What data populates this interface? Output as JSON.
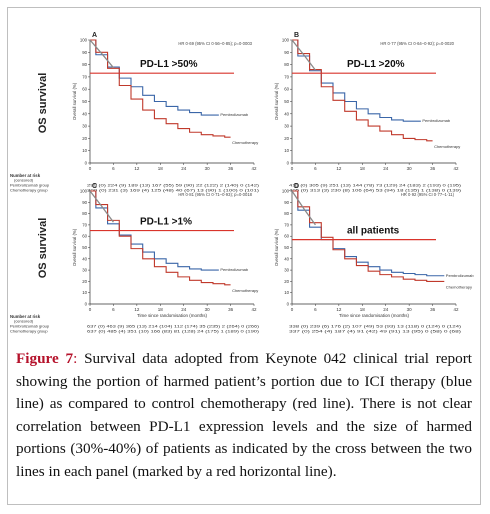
{
  "figure": {
    "caption": {
      "label": "Figure 7",
      "separator": ":",
      "text": " Survival data adopted from Keynote 042 clinical trial report showing the portion of harmed patient’s portion due to ICI therapy (blue line) as compared to control chemotherapy (red line). There is not clear correlation between PD-L1 expression levels and the size of harmed portions (30%-40%) of patients as indicated by the cross between the two lines in each panel (marked by a red horizontal line)."
    },
    "row_labels": [
      "OS survival",
      "OS survival"
    ],
    "risk_labels": {
      "header": "Number at risk\n(censored)",
      "pembro": "Pembrolizumab group",
      "chemo": "Chemotherapy group"
    },
    "colors": {
      "pembrolizumab": "#3a66a8",
      "chemotherapy": "#c0392b",
      "threshold": "#d9342b",
      "km_early": "#8a8a8a"
    }
  },
  "chart_data": [
    {
      "type": "line",
      "panel": "A",
      "title": "PD-L1 >50%",
      "hr_text": "HR 0·69 (95% CI 0·56–0·85); p=0·0003",
      "xlabel": "Time since randomisation (months)",
      "ylabel": "Overall survival (%)",
      "xlim": [
        0,
        42
      ],
      "ylim": [
        0,
        100
      ],
      "xticks": [
        0,
        6,
        12,
        18,
        24,
        30,
        36,
        42
      ],
      "yticks": [
        0,
        10,
        20,
        30,
        40,
        50,
        60,
        70,
        80,
        90,
        100
      ],
      "threshold_y": 73,
      "series": [
        {
          "name": "Pembrolizumab",
          "x": [
            0,
            3,
            6,
            9,
            12,
            15,
            18,
            21,
            24,
            27,
            30,
            33
          ],
          "values": [
            100,
            88,
            78,
            69,
            62,
            55,
            50,
            46,
            43,
            41,
            39,
            39
          ]
        },
        {
          "name": "Chemotherapy",
          "x": [
            0,
            3,
            6,
            9,
            12,
            15,
            18,
            21,
            24,
            27,
            30,
            33,
            36
          ],
          "values": [
            100,
            90,
            77,
            63,
            52,
            43,
            36,
            32,
            28,
            25,
            23,
            22,
            21
          ]
        }
      ],
      "risk_pembro": "299 (0)  224 (9)  189 (13)  167 (55)  59 (90)  22 (122)  2 (140)  0 (142)",
      "risk_chemo": "300 (0)  231 (3)  169 (4)  125 (48)  40 (67)  13 (90)  1 (100)  0 (101)"
    },
    {
      "type": "line",
      "panel": "B",
      "title": "PD-L1 >20%",
      "hr_text": "HR 0·77 (95% CI 0·64–0·92); p=0·0020",
      "xlabel": "Time since randomisation (months)",
      "ylabel": "Overall survival (%)",
      "xlim": [
        0,
        42
      ],
      "ylim": [
        0,
        100
      ],
      "xticks": [
        0,
        6,
        12,
        18,
        24,
        30,
        36,
        42
      ],
      "yticks": [
        0,
        10,
        20,
        30,
        40,
        50,
        60,
        70,
        80,
        90,
        100
      ],
      "threshold_y": 73,
      "series": [
        {
          "name": "Pembrolizumab",
          "x": [
            0,
            3,
            6,
            9,
            12,
            15,
            18,
            21,
            24,
            27,
            30,
            33
          ],
          "values": [
            100,
            87,
            75,
            65,
            57,
            50,
            44,
            40,
            37,
            35,
            34,
            34
          ]
        },
        {
          "name": "Chemotherapy",
          "x": [
            0,
            3,
            6,
            9,
            12,
            15,
            18,
            21,
            24,
            27,
            30,
            33,
            36
          ],
          "values": [
            100,
            89,
            76,
            62,
            51,
            42,
            35,
            30,
            26,
            23,
            20,
            19,
            18
          ]
        }
      ],
      "risk_pembro": "413 (0)  305 (9)  251 (13)  144 (78)  73 (129)  24 (183)  2 (193)  0 (195)",
      "risk_chemo": "405 (0)  313 (3)  230 (8)  106 (64)  53 (94)  18 (135)  1 (138)  0 (139)"
    },
    {
      "type": "line",
      "panel": "C",
      "title": "PD-L1 >1%",
      "hr_text": "HR 0·81 (95% CI 0·71–0·93); p=0·0018",
      "xlabel": "Time since randomisation (months)",
      "ylabel": "Overall survival (%)",
      "xlim": [
        0,
        42
      ],
      "ylim": [
        0,
        100
      ],
      "xticks": [
        0,
        6,
        12,
        18,
        24,
        30,
        36,
        42
      ],
      "yticks": [
        0,
        10,
        20,
        30,
        40,
        50,
        60,
        70,
        80,
        90,
        100
      ],
      "threshold_y": 65,
      "series": [
        {
          "name": "Pembrolizumab",
          "x": [
            0,
            3,
            6,
            9,
            12,
            15,
            18,
            21,
            24,
            27,
            30,
            33
          ],
          "values": [
            100,
            85,
            71,
            61,
            53,
            46,
            40,
            36,
            33,
            31,
            30,
            30
          ]
        },
        {
          "name": "Chemotherapy",
          "x": [
            0,
            3,
            6,
            9,
            12,
            15,
            18,
            21,
            24,
            27,
            30,
            33,
            36
          ],
          "values": [
            100,
            88,
            74,
            60,
            49,
            40,
            33,
            28,
            24,
            21,
            19,
            18,
            17
          ]
        }
      ],
      "risk_pembro": "637 (0)  463 (9)  365 (13)  214 (104)  112 (174)  35 (235)  2 (264)  0 (266)",
      "risk_chemo": "637 (0)  485 (4)  351 (10)  166 (83)  81 (128)  24 (175)  1 (189)  0 (190)"
    },
    {
      "type": "line",
      "panel": "D",
      "title": "all patients",
      "hr_text": "HR 0·92 (95% CI 0·77–1·11)",
      "xlabel": "Time since randomisation (months)",
      "ylabel": "Overall survival (%)",
      "xlim": [
        0,
        42
      ],
      "ylim": [
        0,
        100
      ],
      "xticks": [
        0,
        6,
        12,
        18,
        24,
        30,
        36,
        42
      ],
      "yticks": [
        0,
        10,
        20,
        30,
        40,
        50,
        60,
        70,
        80,
        90,
        100
      ],
      "threshold_y": 57,
      "series": [
        {
          "name": "Pembrolizumab",
          "x": [
            0,
            3,
            6,
            9,
            12,
            15,
            18,
            21,
            24,
            27,
            30,
            33,
            36,
            39
          ],
          "values": [
            100,
            83,
            68,
            57,
            49,
            42,
            37,
            33,
            30,
            28,
            27,
            26,
            25,
            25
          ]
        },
        {
          "name": "Chemotherapy",
          "x": [
            0,
            3,
            6,
            9,
            12,
            15,
            18,
            21,
            24,
            27,
            30,
            33,
            36,
            39
          ],
          "values": [
            100,
            86,
            72,
            59,
            48,
            40,
            34,
            29,
            26,
            24,
            22,
            21,
            20,
            20
          ]
        }
      ],
      "risk_pembro": "338 (0)  239 (6)  176 (2)  107 (49)  53 (93)  13 (118)  0 (124)  0 (124)",
      "risk_chemo": "337 (0)  254 (4)  187 (4)  91 (42)  49 (91)  13 (95)  0 (58)  0 (68)"
    }
  ]
}
